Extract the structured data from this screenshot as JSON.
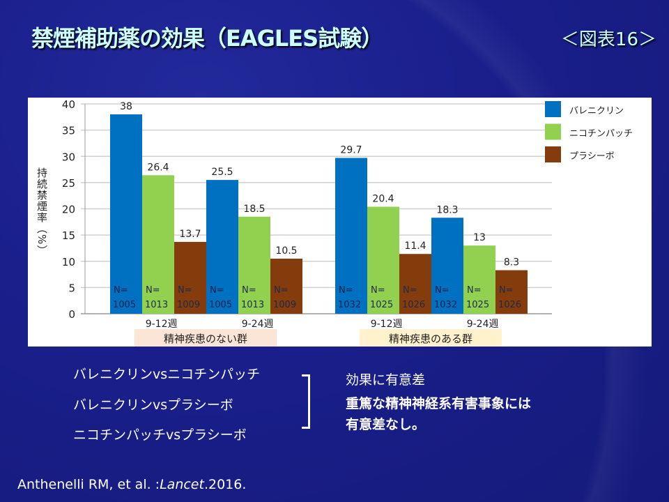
{
  "title": "禁煙補助薬の効果（EAGLES試験）",
  "figure_label": "＜図表16＞",
  "chart_data": {
    "type": "bar",
    "ylabel": "持続禁煙率（%）",
    "ylim": [
      0,
      40
    ],
    "yticks": [
      0,
      5,
      10,
      15,
      20,
      25,
      30,
      35,
      40
    ],
    "grid": true,
    "legend_position": "top-right",
    "groups": [
      {
        "label": "精神疾患のない群",
        "color": "#fbe5d6",
        "categories": [
          "9-12週",
          "9-24週"
        ]
      },
      {
        "label": "精神疾患のある群",
        "color": "#fff2cc",
        "categories": [
          "9-12週",
          "9-24週"
        ]
      }
    ],
    "categories": [
      "9-12週",
      "9-24週",
      "9-12週",
      "9-24週"
    ],
    "series": [
      {
        "name": "バレニクリン",
        "color": "#0070c0",
        "values": [
          38,
          25.5,
          29.7,
          18.3
        ],
        "n": [
          "N=\n1005",
          "N=\n1005",
          "N=\n1032",
          "N=\n1032"
        ]
      },
      {
        "name": "ニコチンパッチ",
        "color": "#92d050",
        "values": [
          26.4,
          18.5,
          20.4,
          13
        ],
        "n": [
          "N=\n1013",
          "N=\n1013",
          "N=\n1025",
          "N=\n1025"
        ]
      },
      {
        "name": "プラシーボ",
        "color": "#843c0c",
        "values": [
          13.7,
          10.5,
          11.4,
          8.3
        ],
        "n": [
          "N=\n1009",
          "N=\n1009",
          "N=\n1026",
          "N=\n1026"
        ]
      }
    ]
  },
  "comparisons": [
    "バレニクリンvsニコチンパッチ",
    "バレニクリンvsプラシーボ",
    "ニコチンパッチvsプラシーボ"
  ],
  "results": [
    "効果に有意差",
    "重篤な精神神経系有害事象には",
    "有意差なし。"
  ],
  "citation": {
    "authors": "Anthenelli RM, et al. :",
    "journal": "Lancet",
    "year": ".2016."
  }
}
